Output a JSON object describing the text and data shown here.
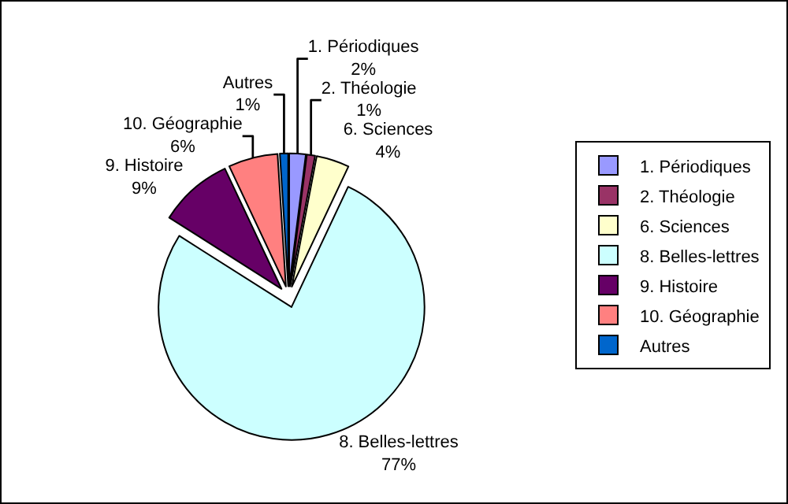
{
  "chart_data": {
    "type": "pie",
    "categories": [
      "1. Périodiques",
      "2. Théologie",
      "6. Sciences",
      "8. Belles-lettres",
      "9. Histoire",
      "10. Géographie",
      "Autres"
    ],
    "values": [
      2,
      1,
      4,
      77,
      9,
      6,
      1
    ],
    "colors": [
      "#9999ff",
      "#993366",
      "#ffffcc",
      "#ccffff",
      "#660066",
      "#ff8080",
      "#0066cc"
    ],
    "value_labels": [
      "2%",
      "1%",
      "4%",
      "77%",
      "9%",
      "6%",
      "1%"
    ],
    "legend": "right"
  }
}
